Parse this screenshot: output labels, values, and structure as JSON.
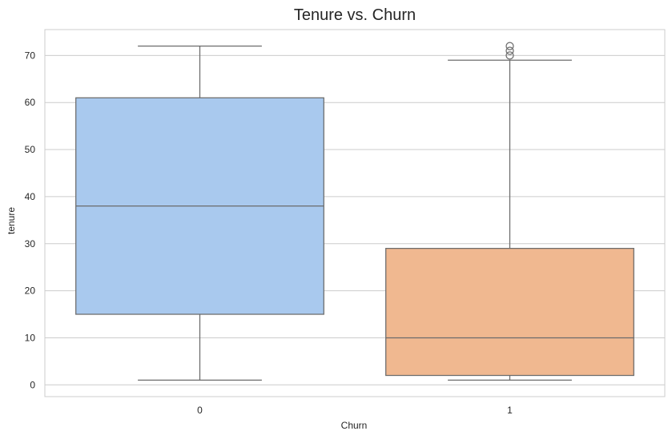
{
  "chart_data": {
    "type": "box",
    "title": "Tenure vs. Churn",
    "xlabel": "Churn",
    "ylabel": "tenure",
    "categories": [
      "0",
      "1"
    ],
    "ylim": [
      -2.5,
      75.5
    ],
    "yticks": [
      0,
      10,
      20,
      30,
      40,
      50,
      60,
      70
    ],
    "ytick_labels": [
      "0",
      "10",
      "20",
      "30",
      "40",
      "50",
      "60",
      "70"
    ],
    "grid": true,
    "boxes": [
      {
        "category": "0",
        "whisker_low": 1,
        "q1": 15,
        "median": 38,
        "q3": 61,
        "whisker_high": 72,
        "outliers": [],
        "color": "#a9c9ee"
      },
      {
        "category": "1",
        "whisker_low": 1,
        "q1": 2,
        "median": 10,
        "q3": 29,
        "whisker_high": 69,
        "outliers": [
          70,
          71,
          72
        ],
        "color": "#f0b890"
      }
    ]
  },
  "colors": {
    "box_edge": "#6b6b6b",
    "grid": "#cccccc",
    "spine": "#cccccc",
    "text": "#262626"
  }
}
